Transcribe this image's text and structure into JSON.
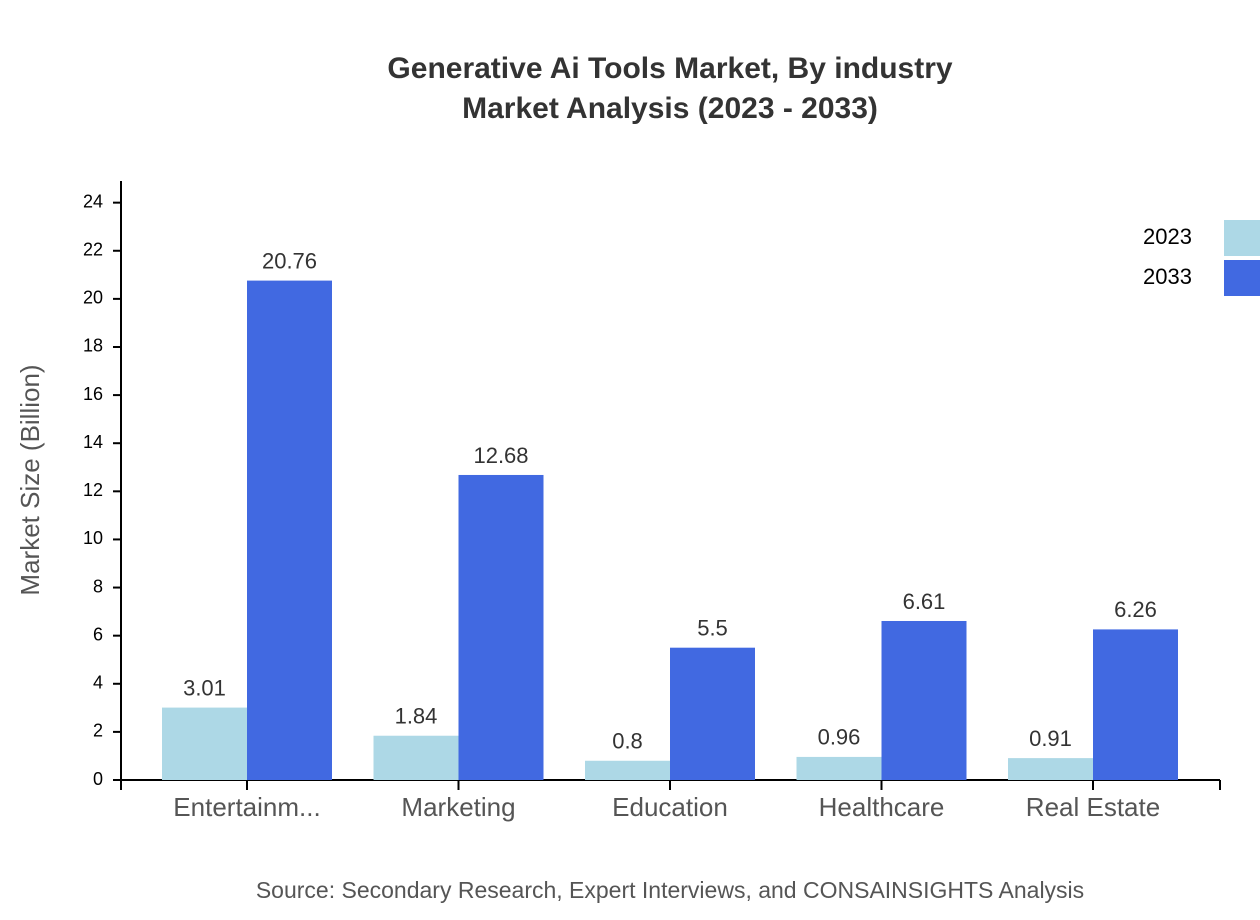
{
  "chart_data": {
    "type": "bar",
    "title": "Generative Ai Tools Market, By industry",
    "subtitle": "Market Analysis (2023 - 2033)",
    "y_label": "Market Size (Billion)",
    "source": "Source: Secondary Research, Expert Interviews, and CONSAINSIGHTS Analysis",
    "categories": [
      "Entertainm...",
      "Marketing",
      "Education",
      "Healthcare",
      "Real Estate"
    ],
    "series": [
      {
        "name": "2023",
        "color": "#add8e6",
        "values": [
          3.01,
          1.84,
          0.8,
          0.96,
          0.91
        ]
      },
      {
        "name": "2033",
        "color": "#4169e1",
        "values": [
          20.76,
          12.68,
          5.5,
          6.61,
          6.26
        ]
      }
    ],
    "ylim": [
      0,
      24.9
    ],
    "yticks": [
      0,
      2,
      4,
      6,
      8,
      10,
      12,
      14,
      16,
      18,
      20,
      22,
      24
    ],
    "legend": "top-right"
  }
}
